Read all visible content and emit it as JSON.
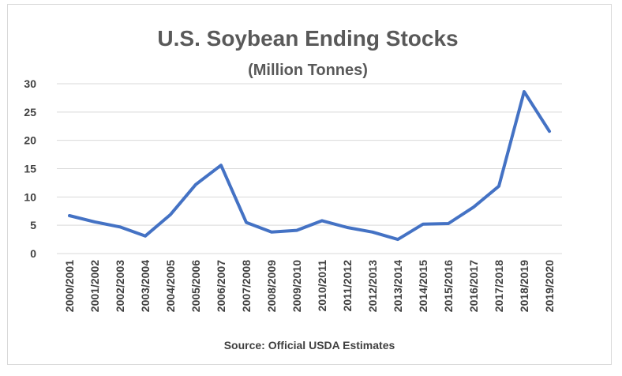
{
  "chart_data": {
    "type": "line",
    "title": "U.S. Soybean Ending Stocks",
    "subtitle": "(Million Tonnes)",
    "source": "Source: Official USDA Estimates",
    "categories": [
      "2000/2001",
      "2001/2002",
      "2002/2003",
      "2003/2004",
      "2004/2005",
      "2005/2006",
      "2006/2007",
      "2007/2008",
      "2008/2009",
      "2009/2010",
      "2010/2011",
      "2011/2012",
      "2012/2013",
      "2013/2014",
      "2014/2015",
      "2015/2016",
      "2016/2017",
      "2017/2018",
      "2018/2019",
      "2019/2020"
    ],
    "series": [
      {
        "values": [
          6.7,
          5.6,
          4.7,
          3.1,
          6.9,
          12.2,
          15.6,
          5.5,
          3.8,
          4.1,
          5.8,
          4.6,
          3.8,
          2.5,
          5.2,
          5.3,
          8.2,
          11.9,
          28.6,
          21.6
        ]
      }
    ],
    "yticks": [
      0,
      5,
      10,
      15,
      20,
      25,
      30
    ],
    "ylim": [
      0,
      30
    ],
    "grid": true,
    "legend": "none",
    "line_color": "#4472c4",
    "grid_color": "#d9d9d9"
  }
}
